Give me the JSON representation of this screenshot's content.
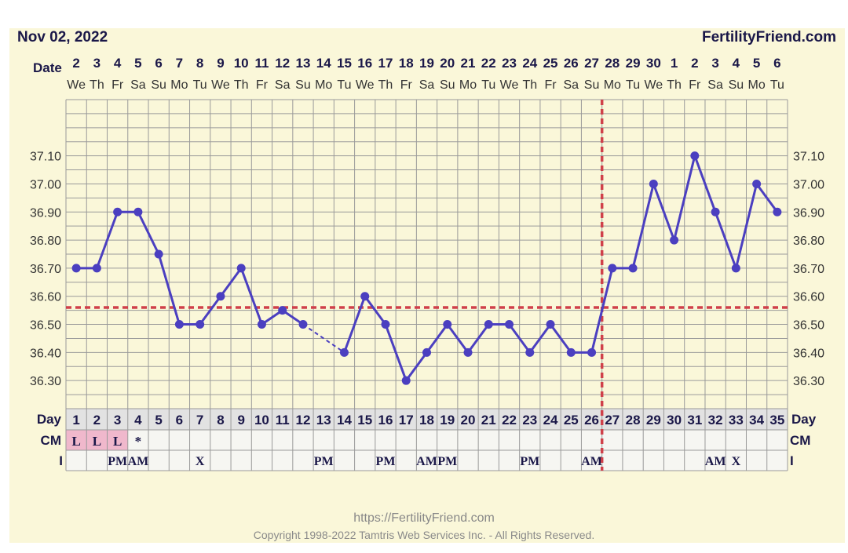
{
  "header": {
    "date": "Nov 02, 2022",
    "site": "FertilityFriend.com"
  },
  "footer": {
    "url": "https://FertilityFriend.com",
    "copyright": "Copyright 1998-2022 Tamtris Web Services Inc. - All Rights Reserved."
  },
  "labels": {
    "date_row": "Date",
    "day_row": "Day",
    "cm_row": "CM",
    "i_row": "I"
  },
  "colors": {
    "line": "#4b3fc0",
    "coverline": "#d0404a",
    "grid": "#9a9a9a",
    "cm_fill": "#f0b8cc",
    "text": "#1a1748"
  },
  "chart_data": {
    "type": "line",
    "title": "",
    "xlabel": "Day",
    "ylabel": "",
    "ylim": [
      36.2,
      37.3
    ],
    "y_ticks": [
      "37.10",
      "37.00",
      "36.90",
      "36.80",
      "36.70",
      "36.60",
      "36.50",
      "36.40",
      "36.30"
    ],
    "cycle_days": [
      "1",
      "2",
      "3",
      "4",
      "5",
      "6",
      "7",
      "8",
      "9",
      "10",
      "11",
      "12",
      "13",
      "14",
      "15",
      "16",
      "17",
      "18",
      "19",
      "20",
      "21",
      "22",
      "23",
      "24",
      "25",
      "26",
      "27",
      "28",
      "29",
      "30",
      "31",
      "32",
      "33",
      "34",
      "35"
    ],
    "dates": [
      "2",
      "3",
      "4",
      "5",
      "6",
      "7",
      "8",
      "9",
      "10",
      "11",
      "12",
      "13",
      "14",
      "15",
      "16",
      "17",
      "18",
      "19",
      "20",
      "21",
      "22",
      "23",
      "24",
      "25",
      "26",
      "27",
      "28",
      "29",
      "30",
      "1",
      "2",
      "3",
      "4",
      "5",
      "6"
    ],
    "weekdays": [
      "We",
      "Th",
      "Fr",
      "Sa",
      "Su",
      "Mo",
      "Tu",
      "We",
      "Th",
      "Fr",
      "Sa",
      "Su",
      "Mo",
      "Tu",
      "We",
      "Th",
      "Fr",
      "Sa",
      "Su",
      "Mo",
      "Tu",
      "We",
      "Th",
      "Fr",
      "Sa",
      "Su",
      "Mo",
      "Tu",
      "We",
      "Th",
      "Fr",
      "Sa",
      "Su",
      "Mo",
      "Tu"
    ],
    "temperatures": [
      36.7,
      36.7,
      36.9,
      36.9,
      36.75,
      36.5,
      36.5,
      36.6,
      36.7,
      36.5,
      36.55,
      36.5,
      null,
      36.4,
      36.6,
      36.5,
      36.3,
      36.4,
      36.5,
      36.4,
      36.5,
      36.5,
      36.4,
      36.5,
      36.4,
      36.4,
      36.7,
      36.7,
      37.0,
      36.8,
      37.1,
      36.9,
      36.7,
      37.0,
      36.9
    ],
    "coverline": 36.56,
    "ovulation_day": 26,
    "cm": [
      "L",
      "L",
      "L",
      "*",
      "",
      "",
      "",
      "",
      "",
      "",
      "",
      "",
      "",
      "",
      "",
      "",
      "",
      "",
      "",
      "",
      "",
      "",
      "",
      "",
      "",
      "",
      "",
      "",
      "",
      "",
      "",
      "",
      "",
      "",
      ""
    ],
    "cm_highlight": [
      true,
      true,
      true,
      false,
      false,
      false,
      false,
      false,
      false,
      false,
      false,
      false,
      false,
      false,
      false,
      false,
      false,
      false,
      false,
      false,
      false,
      false,
      false,
      false,
      false,
      false,
      false,
      false,
      false,
      false,
      false,
      false,
      false,
      false,
      false
    ],
    "intercourse": [
      "",
      "",
      "PM",
      "AM",
      "",
      "",
      "X",
      "",
      "",
      "",
      "",
      "",
      "PM",
      "",
      "",
      "PM",
      "",
      "AM",
      "PM",
      "",
      "",
      "",
      "PM",
      "",
      "",
      "AM",
      "",
      "",
      "",
      "",
      "",
      "AM",
      "X",
      "",
      ""
    ],
    "grid": true,
    "legend": "none"
  }
}
